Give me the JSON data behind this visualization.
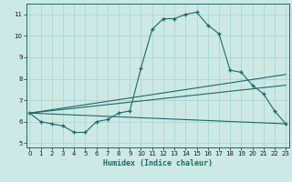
{
  "title": "",
  "xlabel": "Humidex (Indice chaleur)",
  "bg_color": "#cce9e5",
  "grid_color": "#aed4cf",
  "line_color": "#1a6b65",
  "x_values": [
    0,
    1,
    2,
    3,
    4,
    5,
    6,
    7,
    8,
    9,
    10,
    11,
    12,
    13,
    14,
    15,
    16,
    17,
    18,
    19,
    20,
    21,
    22,
    23
  ],
  "curve1": [
    6.4,
    6.0,
    5.9,
    5.8,
    5.5,
    5.5,
    6.0,
    6.1,
    6.4,
    6.5,
    8.5,
    10.3,
    10.8,
    10.8,
    11.0,
    11.1,
    10.5,
    10.1,
    8.4,
    8.3,
    7.7,
    7.3,
    6.5,
    5.9
  ],
  "line_flat": [
    [
      0,
      6.4
    ],
    [
      23,
      5.9
    ]
  ],
  "line_upper": [
    [
      0,
      6.4
    ],
    [
      23,
      8.2
    ]
  ],
  "line_mid": [
    [
      0,
      6.4
    ],
    [
      23,
      7.7
    ]
  ],
  "ylim": [
    4.8,
    11.5
  ],
  "xlim": [
    -0.3,
    23.3
  ],
  "yticks": [
    5,
    6,
    7,
    8,
    9,
    10,
    11
  ],
  "xticks": [
    0,
    1,
    2,
    3,
    4,
    5,
    6,
    7,
    8,
    9,
    10,
    11,
    12,
    13,
    14,
    15,
    16,
    17,
    18,
    19,
    20,
    21,
    22,
    23
  ]
}
